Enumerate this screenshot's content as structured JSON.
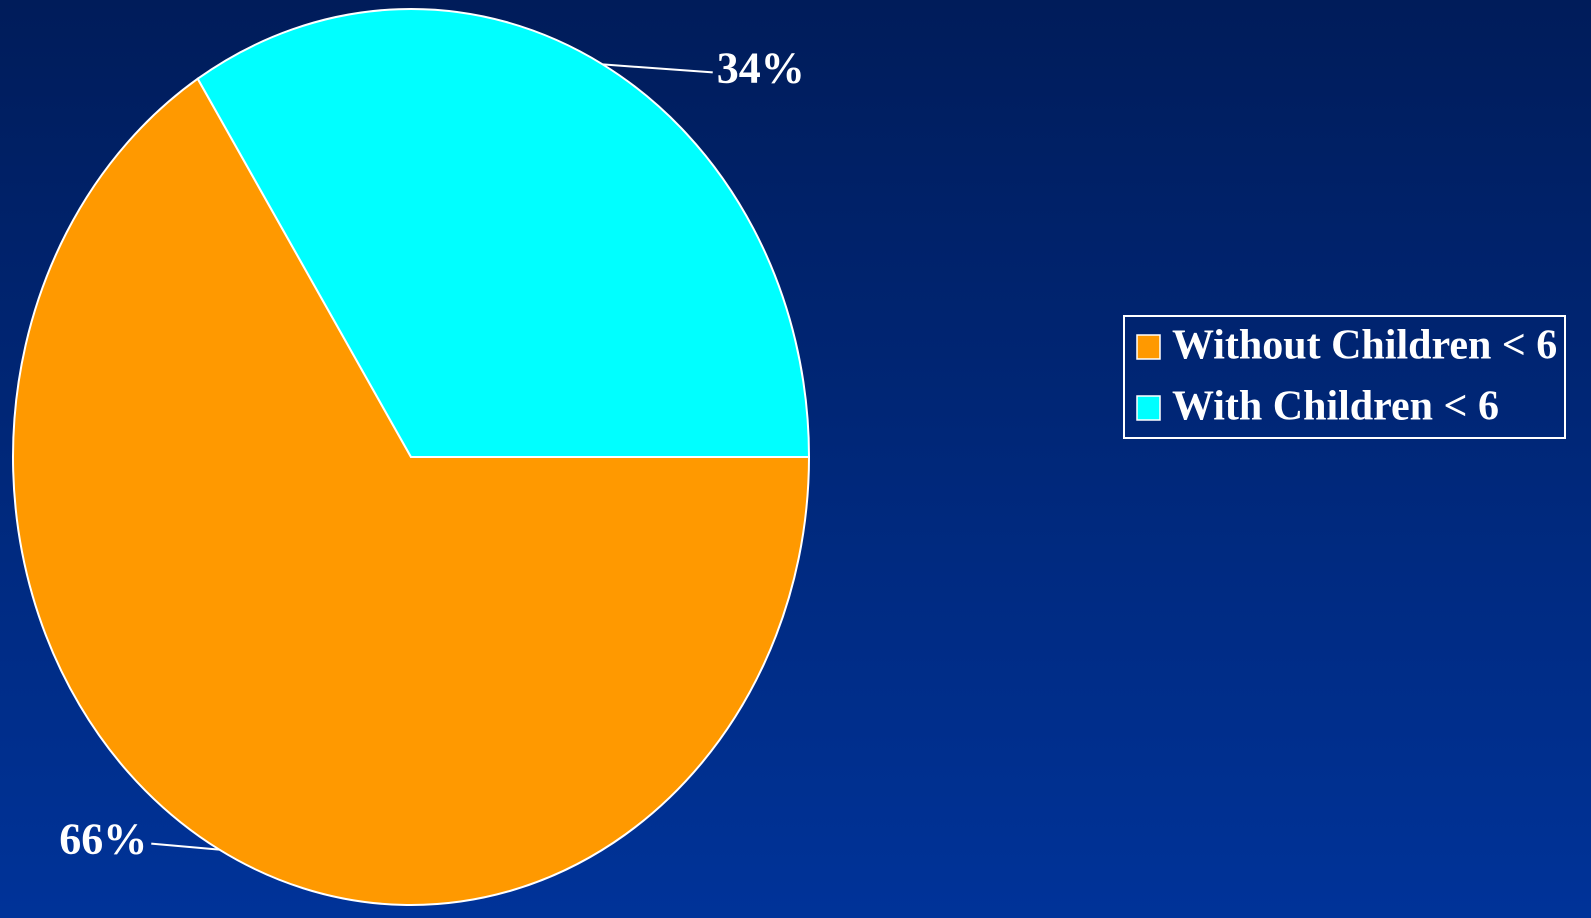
{
  "chart_data": {
    "type": "pie",
    "categories": [
      "Without Children < 6",
      "With Children < 6"
    ],
    "values": [
      66,
      34
    ],
    "value_labels": [
      "66%",
      "34%"
    ],
    "colors": [
      "#ff9900",
      "#00ffff"
    ],
    "legend": "right"
  }
}
